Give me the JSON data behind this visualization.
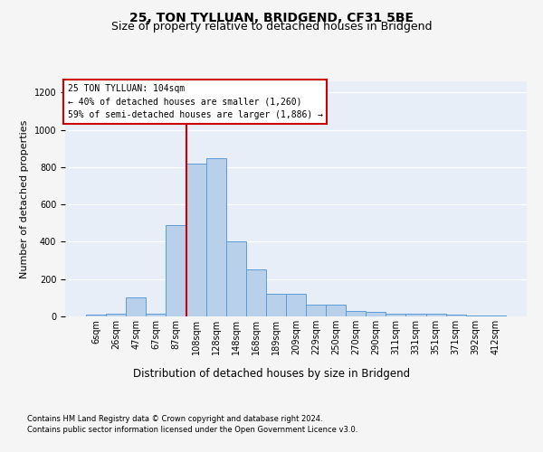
{
  "title": "25, TON TYLLUAN, BRIDGEND, CF31 5BE",
  "subtitle": "Size of property relative to detached houses in Bridgend",
  "xlabel": "Distribution of detached houses by size in Bridgend",
  "ylabel": "Number of detached properties",
  "footer1": "Contains HM Land Registry data © Crown copyright and database right 2024.",
  "footer2": "Contains public sector information licensed under the Open Government Licence v3.0.",
  "bar_labels": [
    "6sqm",
    "26sqm",
    "47sqm",
    "67sqm",
    "87sqm",
    "108sqm",
    "128sqm",
    "148sqm",
    "168sqm",
    "189sqm",
    "209sqm",
    "229sqm",
    "250sqm",
    "270sqm",
    "290sqm",
    "311sqm",
    "331sqm",
    "351sqm",
    "371sqm",
    "392sqm",
    "412sqm"
  ],
  "bar_values": [
    10,
    13,
    100,
    13,
    490,
    820,
    850,
    400,
    250,
    120,
    120,
    65,
    65,
    30,
    25,
    15,
    15,
    15,
    10,
    5,
    5
  ],
  "bar_color": "#b8d0ea",
  "bar_edgecolor": "#5b9bd5",
  "annotation_line0": "25 TON TYLLUAN: 104sqm",
  "annotation_line1": "← 40% of detached houses are smaller (1,260)",
  "annotation_line2": "59% of semi-detached houses are larger (1,886) →",
  "vline_color": "#cc0000",
  "vline_bin_index": 5,
  "ylim_max": 1260,
  "yticks": [
    0,
    200,
    400,
    600,
    800,
    1000,
    1200
  ],
  "bg_color": "#e8eef8",
  "grid_color": "#ffffff",
  "title_fontsize": 10,
  "subtitle_fontsize": 9,
  "ylabel_fontsize": 8,
  "xlabel_fontsize": 8.5,
  "tick_fontsize": 7,
  "annotation_fontsize": 7,
  "footer_fontsize": 6
}
